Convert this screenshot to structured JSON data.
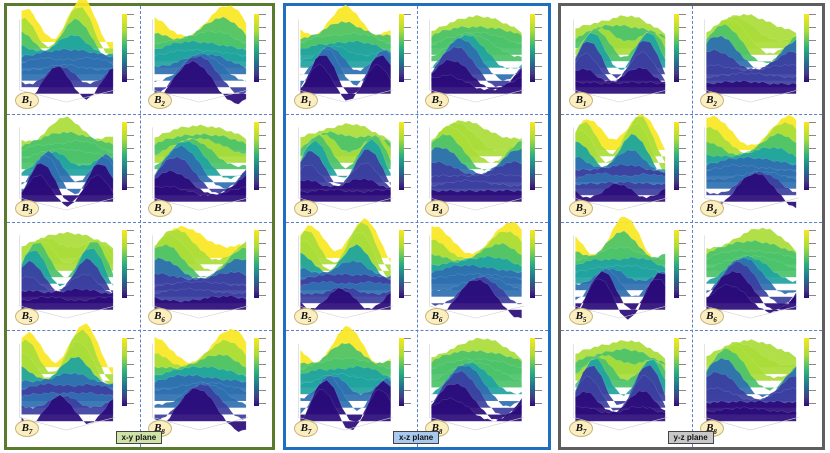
{
  "panels": [
    {
      "id": "xy",
      "label": "x-y plane",
      "border_color": "#5a7a2e",
      "label_bg": "#cfe3a8",
      "cells": [
        {
          "sub": "1"
        },
        {
          "sub": "2"
        },
        {
          "sub": "3"
        },
        {
          "sub": "4"
        },
        {
          "sub": "5"
        },
        {
          "sub": "6"
        },
        {
          "sub": "7"
        },
        {
          "sub": "8"
        }
      ]
    },
    {
      "id": "xz",
      "label": "x-z plane",
      "border_color": "#1f6fc0",
      "label_bg": "#a9c9ee",
      "cells": [
        {
          "sub": "1"
        },
        {
          "sub": "2"
        },
        {
          "sub": "3"
        },
        {
          "sub": "4"
        },
        {
          "sub": "5"
        },
        {
          "sub": "6"
        },
        {
          "sub": "7"
        },
        {
          "sub": "8"
        }
      ]
    },
    {
      "id": "yz",
      "label": "y-z plane",
      "border_color": "#5e5e5e",
      "label_bg": "#c8c8c8",
      "cells": [
        {
          "sub": "1"
        },
        {
          "sub": "2"
        },
        {
          "sub": "3"
        },
        {
          "sub": "4"
        },
        {
          "sub": "5"
        },
        {
          "sub": "6"
        },
        {
          "sub": "7"
        },
        {
          "sub": "8"
        }
      ]
    }
  ],
  "badge_letter": "B",
  "colormap": [
    "#2a0b7a",
    "#3b3fa0",
    "#2e6fb0",
    "#1fa3a0",
    "#4cc26a",
    "#a9dc38",
    "#f9e721"
  ]
}
